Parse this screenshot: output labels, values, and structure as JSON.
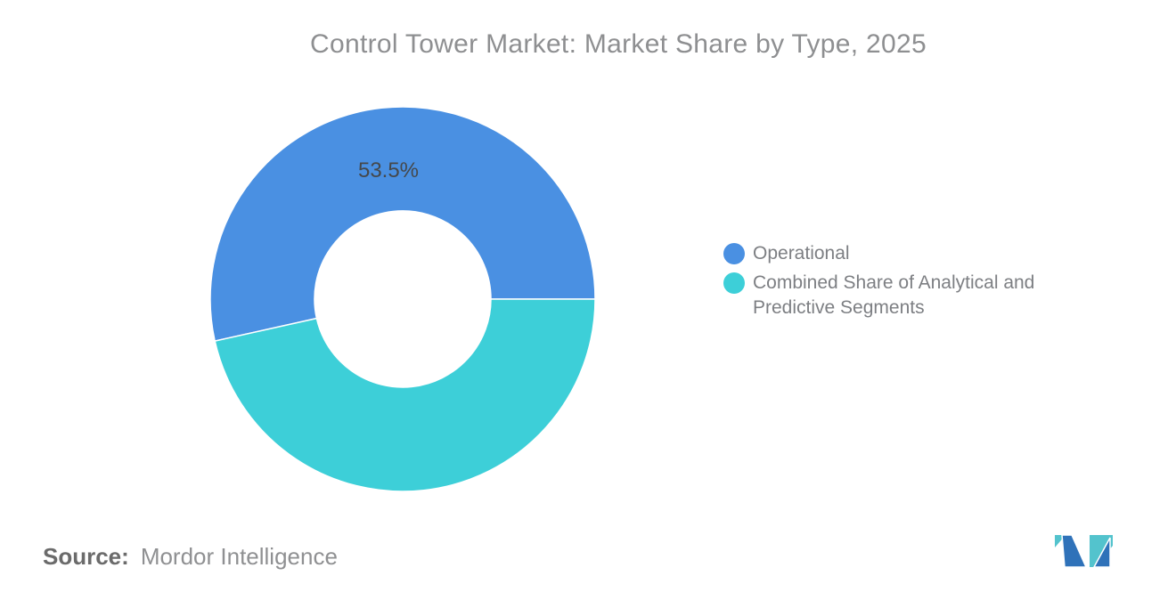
{
  "page": {
    "background": "#ffffff"
  },
  "header": {
    "title": "Control Tower Market: Market Share by Type, 2025",
    "title_color": "#8e8f91"
  },
  "chart_data": {
    "type": "pie",
    "variant": "donut",
    "title": "Control Tower Market: Market Share by Type, 2025",
    "start_angle_deg": 0,
    "direction": "counterclockwise",
    "legend_position": "right",
    "inner_radius_ratio": 0.46,
    "slices": [
      {
        "label": "Operational",
        "value": 53.5,
        "unit": "%",
        "color": "#4A90E2",
        "data_label": "53.5%"
      },
      {
        "label": "Combined Share of Analytical and Predictive Segments",
        "value": 46.5,
        "unit": "%",
        "color": "#3DCFD8",
        "data_label": ""
      }
    ],
    "data_label_color": "#45484b"
  },
  "legend": {
    "text_color": "#7d7f83",
    "items": [
      {
        "label": "Operational",
        "color": "#4A90E2"
      },
      {
        "label": "Combined Share of Analytical and Predictive Segments",
        "color": "#3DCFD8"
      }
    ]
  },
  "footer": {
    "source_label": "Source:",
    "source_value": "Mordor Intelligence"
  },
  "logo": {
    "name": "mordor-intelligence-logo",
    "blue": "#2F72B9",
    "teal": "#53C3CD"
  }
}
